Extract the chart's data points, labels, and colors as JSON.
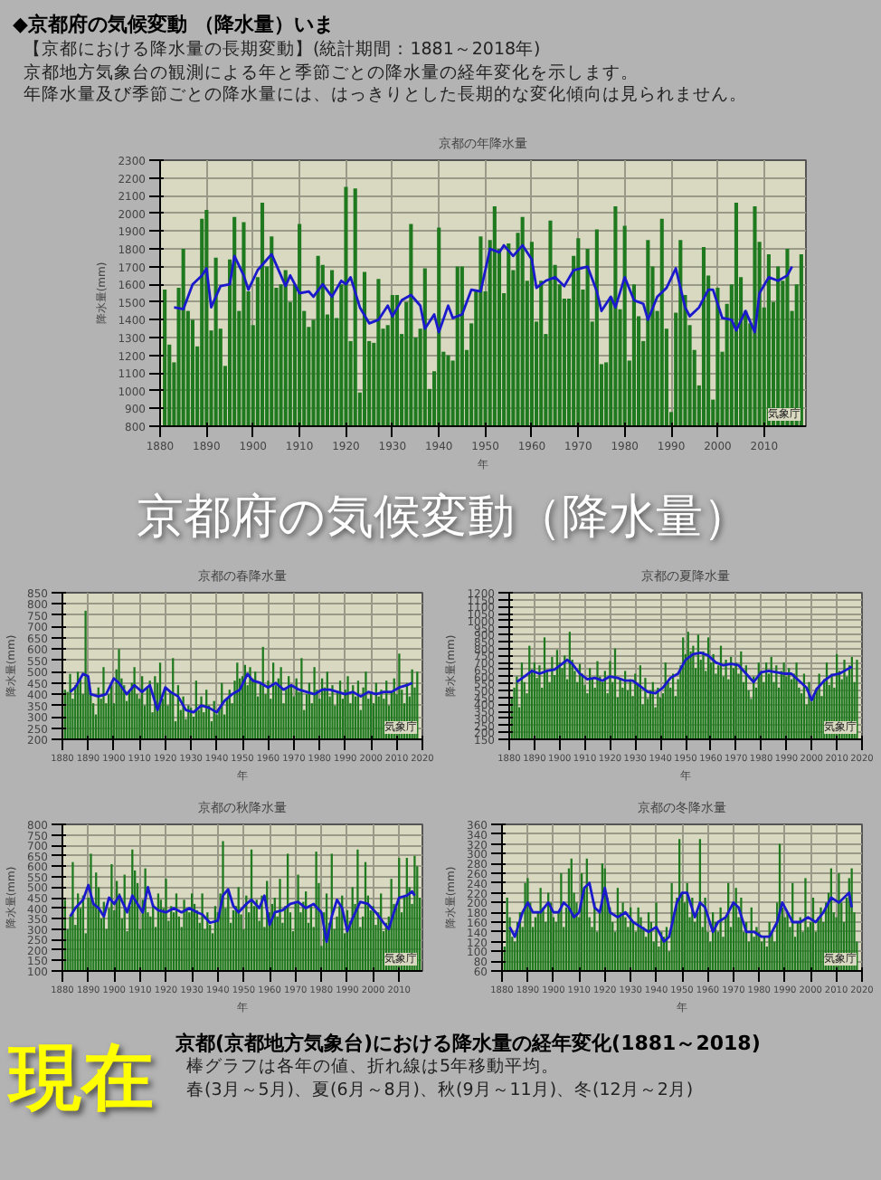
{
  "chart_data": [
    {
      "type": "other",
      "title": "◆京都府の気候変動 （降水量）いま",
      "annotations": [
        "【京都における降水量の長期変動】(統計期間：1881～2018年)",
        "京都地方気象台の観測による年と季節ごとの降水量の経年変化を示します。",
        "年降水量及び季節ごとの降水量には、はっきりとした長期的な変化傾向は見られません。"
      ]
    },
    {
      "type": "bar",
      "title": "京都の年降水量",
      "xlabel": "年",
      "ylabel": "降水量(mm)",
      "xlim": [
        1880,
        2019
      ],
      "ylim": [
        800,
        2300
      ],
      "xticks": [
        1880,
        1890,
        1900,
        1910,
        1920,
        1930,
        1940,
        1950,
        1960,
        1970,
        1980,
        1990,
        2000,
        2010
      ],
      "yticks": [
        800,
        900,
        1000,
        1100,
        1200,
        1300,
        1400,
        1500,
        1600,
        1700,
        1800,
        1900,
        2000,
        2100,
        2200,
        2300
      ],
      "grid": true,
      "annotations": [
        "気象庁"
      ],
      "x": [
        1881,
        1882,
        1883,
        1884,
        1885,
        1886,
        1887,
        1888,
        1889,
        1890,
        1891,
        1892,
        1893,
        1894,
        1895,
        1896,
        1897,
        1898,
        1899,
        1900,
        1901,
        1902,
        1903,
        1904,
        1905,
        1906,
        1907,
        1908,
        1909,
        1910,
        1911,
        1912,
        1913,
        1914,
        1915,
        1916,
        1917,
        1918,
        1919,
        1920,
        1921,
        1922,
        1923,
        1924,
        1925,
        1926,
        1927,
        1928,
        1929,
        1930,
        1931,
        1932,
        1933,
        1934,
        1935,
        1936,
        1937,
        1938,
        1939,
        1940,
        1941,
        1942,
        1943,
        1944,
        1945,
        1946,
        1947,
        1948,
        1949,
        1950,
        1951,
        1952,
        1953,
        1954,
        1955,
        1956,
        1957,
        1958,
        1959,
        1960,
        1961,
        1962,
        1963,
        1964,
        1965,
        1966,
        1967,
        1968,
        1969,
        1970,
        1971,
        1972,
        1973,
        1974,
        1975,
        1976,
        1977,
        1978,
        1979,
        1980,
        1981,
        1982,
        1983,
        1984,
        1985,
        1986,
        1987,
        1988,
        1989,
        1990,
        1991,
        1992,
        1993,
        1994,
        1995,
        1996,
        1997,
        1998,
        1999,
        2000,
        2001,
        2002,
        2003,
        2004,
        2005,
        2006,
        2007,
        2008,
        2009,
        2010,
        2011,
        2012,
        2013,
        2014,
        2015,
        2016,
        2017,
        2018
      ],
      "series": [
        {
          "type": "bar",
          "color": "#1f7a1f",
          "values": [
            1570,
            1260,
            1160,
            1580,
            1800,
            1450,
            1400,
            1250,
            1970,
            2020,
            1340,
            1750,
            1350,
            1140,
            1740,
            1980,
            1450,
            1950,
            1560,
            1370,
            1640,
            2060,
            1700,
            1870,
            1580,
            1600,
            1680,
            1500,
            1600,
            1940,
            1450,
            1360,
            1400,
            1760,
            1710,
            1430,
            1680,
            1410,
            1600,
            2150,
            1280,
            2140,
            990,
            1670,
            1280,
            1270,
            1630,
            1350,
            1370,
            1540,
            1540,
            1320,
            1500,
            1940,
            1300,
            1350,
            1690,
            1010,
            1110,
            1920,
            1220,
            1200,
            1170,
            1700,
            1700,
            1230,
            1380,
            1570,
            1870,
            1560,
            1850,
            2040,
            1800,
            1550,
            1830,
            1680,
            1890,
            1980,
            1620,
            1840,
            1390,
            1620,
            1320,
            1960,
            1710,
            1600,
            1520,
            1520,
            1760,
            1860,
            1570,
            1800,
            1390,
            1910,
            1150,
            1160,
            1530,
            2040,
            1460,
            1930,
            1170,
            1600,
            1420,
            1280,
            1850,
            1700,
            1450,
            1970,
            1350,
            880,
            1440,
            1850,
            1540,
            1370,
            1230,
            1030,
            1810,
            1650,
            950,
            1580,
            1220,
            1490,
            1600,
            2060,
            1640,
            1450,
            1380,
            2040,
            1840,
            1470,
            1770,
            1500,
            1700,
            1620,
            1800,
            1450,
            1600,
            1770
          ]
        },
        {
          "type": "line",
          "color": "#1a1acc",
          "x": [
            1883,
            1885,
            1887,
            1889,
            1890,
            1891,
            1893,
            1895,
            1896,
            1898,
            1899,
            1901,
            1903,
            1904,
            1906,
            1907,
            1908,
            1910,
            1912,
            1913,
            1915,
            1917,
            1919,
            1920,
            1921,
            1923,
            1925,
            1927,
            1929,
            1930,
            1932,
            1934,
            1936,
            1937,
            1939,
            1940,
            1942,
            1943,
            1945,
            1947,
            1949,
            1951,
            1953,
            1954,
            1956,
            1958,
            1960,
            1961,
            1963,
            1965,
            1967,
            1969,
            1972,
            1974,
            1975,
            1977,
            1978,
            1980,
            1982,
            1984,
            1985,
            1987,
            1989,
            1991,
            1993,
            1994,
            1996,
            1998,
            1999,
            2001,
            2003,
            2004,
            2006,
            2008,
            2009,
            2011,
            2013,
            2015,
            2016
          ],
          "values": [
            1470,
            1460,
            1600,
            1650,
            1690,
            1470,
            1590,
            1600,
            1760,
            1650,
            1570,
            1680,
            1740,
            1770,
            1650,
            1590,
            1650,
            1550,
            1560,
            1530,
            1600,
            1530,
            1620,
            1600,
            1640,
            1470,
            1380,
            1400,
            1480,
            1420,
            1510,
            1540,
            1480,
            1350,
            1430,
            1330,
            1480,
            1410,
            1430,
            1570,
            1560,
            1800,
            1780,
            1820,
            1760,
            1820,
            1740,
            1580,
            1620,
            1640,
            1590,
            1680,
            1700,
            1560,
            1450,
            1530,
            1470,
            1640,
            1510,
            1490,
            1400,
            1530,
            1580,
            1690,
            1470,
            1420,
            1470,
            1570,
            1570,
            1410,
            1400,
            1340,
            1450,
            1330,
            1550,
            1640,
            1620,
            1650,
            1700
          ]
        }
      ]
    },
    {
      "type": "other",
      "title": "京都府の気候変動",
      "subtitle": "（降水量）",
      "color": "#ffffff"
    },
    {
      "type": "bar",
      "title": "京都の春降水量",
      "xlabel": "年",
      "ylabel": "降水量(mm)",
      "xlim": [
        1880,
        2020
      ],
      "ylim": [
        200,
        850
      ],
      "xticks": [
        1880,
        1890,
        1900,
        1910,
        1920,
        1930,
        1940,
        1950,
        1960,
        1970,
        1980,
        1990,
        2000,
        2010,
        2020
      ],
      "yticks": [
        200,
        250,
        300,
        350,
        400,
        450,
        500,
        550,
        600,
        650,
        700,
        750,
        800,
        850
      ],
      "grid": true,
      "annotations": [
        "気象庁"
      ],
      "x": [
        1881,
        1882,
        1883,
        1884,
        1885,
        1886,
        1887,
        1888,
        1889,
        1890,
        1891,
        1892,
        1893,
        1894,
        1895,
        1896,
        1897,
        1898,
        1899,
        1900,
        1901,
        1902,
        1903,
        1904,
        1905,
        1906,
        1907,
        1908,
        1909,
        1910,
        1911,
        1912,
        1913,
        1914,
        1915,
        1916,
        1917,
        1918,
        1919,
        1920,
        1921,
        1922,
        1923,
        1924,
        1925,
        1926,
        1927,
        1928,
        1929,
        1930,
        1931,
        1932,
        1933,
        1934,
        1935,
        1936,
        1937,
        1938,
        1939,
        1940,
        1941,
        1942,
        1943,
        1944,
        1945,
        1946,
        1947,
        1948,
        1949,
        1950,
        1951,
        1952,
        1953,
        1954,
        1955,
        1956,
        1957,
        1958,
        1959,
        1960,
        1961,
        1962,
        1963,
        1964,
        1965,
        1966,
        1967,
        1968,
        1969,
        1970,
        1971,
        1972,
        1973,
        1974,
        1975,
        1976,
        1977,
        1978,
        1979,
        1980,
        1981,
        1982,
        1983,
        1984,
        1985,
        1986,
        1987,
        1988,
        1989,
        1990,
        1991,
        1992,
        1993,
        1994,
        1995,
        1996,
        1997,
        1998,
        1999,
        2000,
        2001,
        2002,
        2003,
        2004,
        2005,
        2006,
        2007,
        2008,
        2009,
        2010,
        2011,
        2012,
        2013,
        2014,
        2015,
        2016,
        2017,
        2018
      ],
      "series": [
        {
          "type": "bar",
          "color": "#1f7a1f",
          "values": [
            420,
            410,
            490,
            380,
            440,
            500,
            470,
            400,
            770,
            480,
            400,
            360,
            310,
            430,
            380,
            520,
            360,
            400,
            440,
            360,
            510,
            600,
            470,
            440,
            370,
            410,
            450,
            520,
            400,
            380,
            480,
            350,
            430,
            460,
            320,
            480,
            450,
            540,
            380,
            420,
            350,
            410,
            560,
            280,
            440,
            330,
            390,
            290,
            350,
            340,
            300,
            460,
            330,
            390,
            320,
            420,
            350,
            280,
            370,
            310,
            340,
            450,
            310,
            380,
            420,
            360,
            460,
            540,
            470,
            480,
            530,
            440,
            520,
            470,
            500,
            390,
            450,
            610,
            400,
            460,
            380,
            540,
            440,
            470,
            520,
            360,
            420,
            480,
            440,
            390,
            470,
            410,
            560,
            330,
            400,
            450,
            360,
            520,
            420,
            380,
            470,
            430,
            500,
            390,
            440,
            350,
            410,
            460,
            380,
            420,
            480,
            360,
            440,
            390,
            460,
            330,
            430,
            500,
            380,
            410,
            360,
            450,
            390,
            420,
            380,
            460,
            350,
            410,
            470,
            400,
            580,
            420,
            360,
            450,
            390,
            510,
            430,
            500
          ]
        },
        {
          "type": "line",
          "color": "#1a1acc",
          "x": [
            1883,
            1885,
            1888,
            1890,
            1891,
            1894,
            1897,
            1900,
            1902,
            1905,
            1908,
            1911,
            1914,
            1917,
            1920,
            1922,
            1925,
            1928,
            1931,
            1934,
            1937,
            1940,
            1943,
            1946,
            1949,
            1952,
            1954,
            1957,
            1960,
            1963,
            1966,
            1969,
            1972,
            1975,
            1978,
            1981,
            1984,
            1987,
            1990,
            1993,
            1996,
            1999,
            2002,
            2005,
            2008,
            2011,
            2014,
            2016
          ],
          "values": [
            410,
            430,
            490,
            480,
            400,
            390,
            400,
            470,
            450,
            400,
            440,
            410,
            440,
            330,
            430,
            410,
            390,
            330,
            320,
            350,
            340,
            320,
            370,
            400,
            420,
            490,
            460,
            450,
            430,
            450,
            420,
            440,
            420,
            410,
            400,
            420,
            420,
            410,
            400,
            410,
            390,
            410,
            400,
            410,
            410,
            430,
            440,
            450
          ]
        }
      ]
    },
    {
      "type": "bar",
      "title": "京都の夏降水量",
      "xlabel": "年",
      "ylabel": "降水量(mm)",
      "xlim": [
        1880,
        2020
      ],
      "ylim": [
        150,
        1200
      ],
      "xticks": [
        1880,
        1890,
        1900,
        1910,
        1920,
        1930,
        1940,
        1950,
        1960,
        1970,
        1980,
        1990,
        2000,
        2010,
        2020
      ],
      "yticks": [
        150,
        200,
        250,
        300,
        350,
        400,
        450,
        500,
        550,
        600,
        650,
        700,
        750,
        800,
        850,
        900,
        950,
        1000,
        1050,
        1100,
        1150,
        1200
      ],
      "grid": true,
      "annotations": [
        "気象庁"
      ],
      "x": [
        1881,
        1882,
        1883,
        1884,
        1885,
        1886,
        1887,
        1888,
        1889,
        1890,
        1891,
        1892,
        1893,
        1894,
        1895,
        1896,
        1897,
        1898,
        1899,
        1900,
        1901,
        1902,
        1903,
        1904,
        1905,
        1906,
        1907,
        1908,
        1909,
        1910,
        1911,
        1912,
        1913,
        1914,
        1915,
        1916,
        1917,
        1918,
        1919,
        1920,
        1921,
        1922,
        1923,
        1924,
        1925,
        1926,
        1927,
        1928,
        1929,
        1930,
        1931,
        1932,
        1933,
        1934,
        1935,
        1936,
        1937,
        1938,
        1939,
        1940,
        1941,
        1942,
        1943,
        1944,
        1945,
        1946,
        1947,
        1948,
        1949,
        1950,
        1951,
        1952,
        1953,
        1954,
        1955,
        1956,
        1957,
        1958,
        1959,
        1960,
        1961,
        1962,
        1963,
        1964,
        1965,
        1966,
        1967,
        1968,
        1969,
        1970,
        1971,
        1972,
        1973,
        1974,
        1975,
        1976,
        1977,
        1978,
        1979,
        1980,
        1981,
        1982,
        1983,
        1984,
        1985,
        1986,
        1987,
        1988,
        1989,
        1990,
        1991,
        1992,
        1993,
        1994,
        1995,
        1996,
        1997,
        1998,
        1999,
        2000,
        2001,
        2002,
        2003,
        2004,
        2005,
        2006,
        2007,
        2008,
        2009,
        2010,
        2011,
        2012,
        2013,
        2014,
        2015,
        2016,
        2017,
        2018
      ],
      "series": [
        {
          "type": "bar",
          "color": "#1f7a1f",
          "values": [
            450,
            520,
            600,
            380,
            700,
            560,
            480,
            820,
            650,
            700,
            590,
            680,
            520,
            880,
            640,
            560,
            740,
            610,
            790,
            700,
            660,
            750,
            580,
            920,
            720,
            640,
            560,
            690,
            620,
            540,
            480,
            660,
            580,
            520,
            710,
            600,
            560,
            640,
            480,
            710,
            560,
            800,
            450,
            580,
            520,
            640,
            500,
            580,
            460,
            620,
            540,
            680,
            400,
            590,
            440,
            500,
            560,
            380,
            520,
            450,
            480,
            700,
            560,
            520,
            620,
            460,
            580,
            680,
            880,
            760,
            920,
            780,
            820,
            660,
            900,
            720,
            780,
            640,
            880,
            700,
            760,
            620,
            680,
            820,
            600,
            720,
            580,
            740,
            660,
            700,
            620,
            780,
            560,
            680,
            500,
            440,
            600,
            520,
            700,
            640,
            560,
            700,
            620,
            740,
            560,
            680,
            520,
            640,
            700,
            600,
            660,
            580,
            620,
            700,
            520,
            480,
            620,
            400,
            560,
            420,
            480,
            520,
            620,
            460,
            580,
            700,
            540,
            620,
            520,
            760,
            640,
            580,
            720,
            600,
            680,
            740,
            560,
            720
          ]
        },
        {
          "type": "line",
          "color": "#1a1acc",
          "x": [
            1883,
            1886,
            1889,
            1892,
            1895,
            1898,
            1901,
            1903,
            1905,
            1908,
            1911,
            1914,
            1917,
            1920,
            1923,
            1926,
            1929,
            1932,
            1935,
            1938,
            1941,
            1944,
            1947,
            1950,
            1953,
            1956,
            1959,
            1962,
            1965,
            1968,
            1971,
            1974,
            1977,
            1980,
            1983,
            1986,
            1989,
            1992,
            1995,
            1998,
            2000,
            2002,
            2005,
            2008,
            2011,
            2014,
            2016
          ],
          "values": [
            560,
            600,
            640,
            620,
            640,
            650,
            690,
            720,
            690,
            620,
            580,
            590,
            570,
            600,
            590,
            570,
            570,
            530,
            490,
            480,
            520,
            590,
            620,
            720,
            760,
            770,
            750,
            700,
            680,
            690,
            680,
            620,
            560,
            630,
            640,
            630,
            620,
            620,
            570,
            520,
            430,
            510,
            570,
            610,
            620,
            650,
            670
          ]
        }
      ]
    },
    {
      "type": "bar",
      "title": "京都の秋降水量",
      "xlabel": "年",
      "ylabel": "降水量(mm)",
      "xlim": [
        1880,
        2019
      ],
      "ylim": [
        100,
        800
      ],
      "xticks": [
        1880,
        1890,
        1900,
        1910,
        1920,
        1930,
        1940,
        1950,
        1960,
        1970,
        1980,
        1990,
        2000,
        2010
      ],
      "yticks": [
        100,
        150,
        200,
        250,
        300,
        350,
        400,
        450,
        500,
        550,
        600,
        650,
        700,
        750,
        800
      ],
      "grid": true,
      "annotations": [
        "気象庁"
      ],
      "x": [
        1881,
        1882,
        1883,
        1884,
        1885,
        1886,
        1887,
        1888,
        1889,
        1890,
        1891,
        1892,
        1893,
        1894,
        1895,
        1896,
        1897,
        1898,
        1899,
        1900,
        1901,
        1902,
        1903,
        1904,
        1905,
        1906,
        1907,
        1908,
        1909,
        1910,
        1911,
        1912,
        1913,
        1914,
        1915,
        1916,
        1917,
        1918,
        1919,
        1920,
        1921,
        1922,
        1923,
        1924,
        1925,
        1926,
        1927,
        1928,
        1929,
        1930,
        1931,
        1932,
        1933,
        1934,
        1935,
        1936,
        1937,
        1938,
        1939,
        1940,
        1941,
        1942,
        1943,
        1944,
        1945,
        1946,
        1947,
        1948,
        1949,
        1950,
        1951,
        1952,
        1953,
        1954,
        1955,
        1956,
        1957,
        1958,
        1959,
        1960,
        1961,
        1962,
        1963,
        1964,
        1965,
        1966,
        1967,
        1968,
        1969,
        1970,
        1971,
        1972,
        1973,
        1974,
        1975,
        1976,
        1977,
        1978,
        1979,
        1980,
        1981,
        1982,
        1983,
        1984,
        1985,
        1986,
        1987,
        1988,
        1989,
        1990,
        1991,
        1992,
        1993,
        1994,
        1995,
        1996,
        1997,
        1998,
        1999,
        2000,
        2001,
        2002,
        2003,
        2004,
        2005,
        2006,
        2007,
        2008,
        2009,
        2010,
        2011,
        2012,
        2013,
        2014,
        2015,
        2016,
        2017,
        2018
      ],
      "series": [
        {
          "type": "bar",
          "color": "#1f7a1f",
          "values": [
            440,
            300,
            360,
            620,
            320,
            470,
            400,
            460,
            280,
            450,
            660,
            420,
            570,
            500,
            350,
            430,
            300,
            400,
            610,
            390,
            530,
            470,
            350,
            560,
            290,
            410,
            680,
            580,
            520,
            300,
            440,
            590,
            380,
            360,
            420,
            310,
            470,
            440,
            400,
            540,
            340,
            410,
            380,
            470,
            360,
            310,
            440,
            400,
            380,
            470,
            420,
            390,
            330,
            470,
            300,
            380,
            320,
            280,
            410,
            380,
            470,
            720,
            400,
            480,
            330,
            390,
            410,
            500,
            370,
            300,
            460,
            380,
            680,
            410,
            440,
            340,
            460,
            310,
            530,
            380,
            420,
            450,
            360,
            540,
            330,
            410,
            660,
            380,
            290,
            420,
            560,
            380,
            430,
            480,
            330,
            410,
            310,
            670,
            520,
            220,
            380,
            470,
            330,
            660,
            300,
            360,
            410,
            460,
            280,
            390,
            340,
            500,
            420,
            680,
            310,
            360,
            620,
            460,
            390,
            410,
            320,
            380,
            470,
            290,
            330,
            360,
            540,
            420,
            400,
            640,
            380,
            460,
            640,
            500,
            420,
            650,
            600,
            450
          ]
        },
        {
          "type": "line",
          "color": "#1a1acc",
          "x": [
            1883,
            1885,
            1888,
            1890,
            1892,
            1894,
            1896,
            1898,
            1900,
            1902,
            1905,
            1907,
            1909,
            1911,
            1913,
            1915,
            1917,
            1920,
            1923,
            1926,
            1929,
            1932,
            1934,
            1937,
            1940,
            1942,
            1944,
            1946,
            1948,
            1951,
            1953,
            1956,
            1958,
            1960,
            1962,
            1965,
            1968,
            1971,
            1974,
            1977,
            1980,
            1982,
            1984,
            1986,
            1988,
            1990,
            1992,
            1995,
            1998,
            2001,
            2004,
            2006,
            2008,
            2010,
            2013,
            2015,
            2016
          ],
          "values": [
            360,
            400,
            440,
            510,
            420,
            400,
            360,
            450,
            420,
            460,
            380,
            460,
            420,
            380,
            500,
            410,
            390,
            380,
            400,
            380,
            400,
            380,
            370,
            330,
            340,
            460,
            490,
            410,
            380,
            420,
            440,
            400,
            460,
            320,
            380,
            390,
            420,
            430,
            400,
            420,
            380,
            240,
            360,
            440,
            400,
            290,
            350,
            430,
            420,
            380,
            330,
            300,
            380,
            450,
            460,
            480,
            460
          ]
        }
      ]
    },
    {
      "type": "bar",
      "title": "京都の冬降水量",
      "xlabel": "年",
      "ylabel": "降水量(mm)",
      "xlim": [
        1880,
        2020
      ],
      "ylim": [
        60,
        360
      ],
      "xticks": [
        1880,
        1890,
        1900,
        1910,
        1920,
        1930,
        1940,
        1950,
        1960,
        1970,
        1980,
        1990,
        2000,
        2010,
        2020
      ],
      "yticks": [
        60,
        80,
        100,
        120,
        140,
        160,
        180,
        200,
        220,
        240,
        260,
        280,
        300,
        320,
        340,
        360
      ],
      "grid": true,
      "annotations": [
        "気象庁"
      ],
      "x": [
        1881,
        1882,
        1883,
        1884,
        1885,
        1886,
        1887,
        1888,
        1889,
        1890,
        1891,
        1892,
        1893,
        1894,
        1895,
        1896,
        1897,
        1898,
        1899,
        1900,
        1901,
        1902,
        1903,
        1904,
        1905,
        1906,
        1907,
        1908,
        1909,
        1910,
        1911,
        1912,
        1913,
        1914,
        1915,
        1916,
        1917,
        1918,
        1919,
        1920,
        1921,
        1922,
        1923,
        1924,
        1925,
        1926,
        1927,
        1928,
        1929,
        1930,
        1931,
        1932,
        1933,
        1934,
        1935,
        1936,
        1937,
        1938,
        1939,
        1940,
        1941,
        1942,
        1943,
        1944,
        1945,
        1946,
        1947,
        1948,
        1949,
        1950,
        1951,
        1952,
        1953,
        1954,
        1955,
        1956,
        1957,
        1958,
        1959,
        1960,
        1961,
        1962,
        1963,
        1964,
        1965,
        1966,
        1967,
        1968,
        1969,
        1970,
        1971,
        1972,
        1973,
        1974,
        1975,
        1976,
        1977,
        1978,
        1979,
        1980,
        1981,
        1982,
        1983,
        1984,
        1985,
        1986,
        1987,
        1988,
        1989,
        1990,
        1991,
        1992,
        1993,
        1994,
        1995,
        1996,
        1997,
        1998,
        1999,
        2000,
        2001,
        2002,
        2003,
        2004,
        2005,
        2006,
        2007,
        2008,
        2009,
        2010,
        2011,
        2012,
        2013,
        2014,
        2015,
        2016,
        2017,
        2018
      ],
      "series": [
        {
          "type": "bar",
          "color": "#1f7a1f",
          "values": [
            110,
            210,
            170,
            130,
            120,
            160,
            180,
            150,
            240,
            250,
            200,
            150,
            170,
            180,
            230,
            190,
            160,
            220,
            200,
            170,
            160,
            180,
            260,
            150,
            190,
            270,
            290,
            220,
            200,
            170,
            260,
            230,
            290,
            170,
            150,
            200,
            140,
            180,
            280,
            270,
            210,
            190,
            160,
            140,
            230,
            180,
            200,
            170,
            150,
            190,
            160,
            140,
            190,
            170,
            150,
            130,
            180,
            160,
            120,
            200,
            110,
            140,
            130,
            150,
            100,
            240,
            180,
            210,
            330,
            220,
            200,
            240,
            170,
            210,
            160,
            180,
            330,
            150,
            210,
            140,
            120,
            180,
            160,
            140,
            190,
            130,
            170,
            240,
            150,
            200,
            230,
            170,
            210,
            140,
            160,
            120,
            190,
            130,
            150,
            140,
            120,
            130,
            110,
            160,
            140,
            120,
            200,
            320,
            190,
            170,
            180,
            150,
            240,
            130,
            160,
            170,
            140,
            250,
            150,
            160,
            210,
            140,
            170,
            190,
            160,
            200,
            220,
            270,
            180,
            170,
            260,
            200,
            160,
            210,
            250,
            270,
            180,
            120
          ]
        },
        {
          "type": "line",
          "color": "#1a1acc",
          "x": [
            1883,
            1885,
            1888,
            1890,
            1892,
            1895,
            1898,
            1900,
            1902,
            1904,
            1906,
            1908,
            1910,
            1912,
            1914,
            1916,
            1918,
            1920,
            1922,
            1925,
            1928,
            1931,
            1934,
            1937,
            1940,
            1943,
            1945,
            1948,
            1950,
            1952,
            1955,
            1957,
            1959,
            1962,
            1964,
            1967,
            1970,
            1972,
            1975,
            1978,
            1981,
            1984,
            1987,
            1989,
            1991,
            1993,
            1996,
            1999,
            2002,
            2005,
            2008,
            2011,
            2013,
            2015,
            2016
          ],
          "values": [
            150,
            130,
            180,
            200,
            180,
            180,
            200,
            180,
            180,
            200,
            190,
            170,
            180,
            230,
            240,
            190,
            180,
            230,
            180,
            170,
            180,
            160,
            150,
            140,
            150,
            120,
            130,
            200,
            220,
            220,
            170,
            200,
            190,
            140,
            160,
            170,
            200,
            190,
            140,
            140,
            130,
            130,
            160,
            200,
            180,
            160,
            160,
            170,
            160,
            180,
            210,
            200,
            210,
            220,
            190
          ]
        }
      ]
    },
    {
      "type": "other",
      "title": "京都(京都地方気象台)における降水量の経年変化(1881～2018)",
      "subtitle": "現在",
      "color": "#ffff00",
      "annotations": [
        "棒グラフは各年の値、折れ線は5年移動平均。",
        "春(3月～5月)、夏(6月～8月)、秋(9月～11月)、冬(12月～2月)"
      ]
    }
  ]
}
